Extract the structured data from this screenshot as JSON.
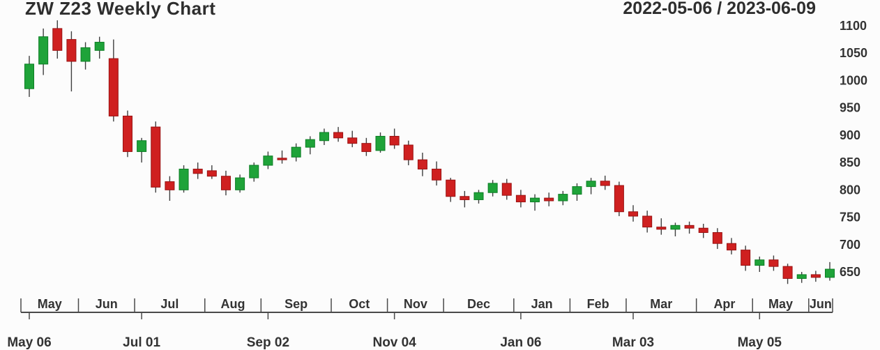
{
  "header": {
    "title": "ZW Z23 Weekly Chart",
    "date_range": "2022-05-06 / 2023-06-09"
  },
  "chart_data": {
    "type": "candlestick",
    "title": "ZW Z23 Weekly Chart",
    "period": "weekly",
    "date_range_label": "2022-05-06 / 2023-06-09",
    "y_axis": {
      "min": 650,
      "max": 1100,
      "ticks": [
        1100,
        1050,
        1000,
        950,
        900,
        850,
        800,
        750,
        700,
        650
      ]
    },
    "x_axis": {
      "month_labels": [
        "May",
        "Jun",
        "Jul",
        "Aug",
        "Sep",
        "Oct",
        "Nov",
        "Dec",
        "Jan",
        "Feb",
        "Mar",
        "Apr",
        "May",
        "Jun"
      ],
      "major_ticks": [
        {
          "label": "May 06",
          "date": "2022-05-06"
        },
        {
          "label": "Jul 01",
          "date": "2022-07-01"
        },
        {
          "label": "Sep 02",
          "date": "2022-09-02"
        },
        {
          "label": "Nov 04",
          "date": "2022-11-04"
        },
        {
          "label": "Jan 06",
          "date": "2023-01-06"
        },
        {
          "label": "Mar 03",
          "date": "2023-03-03"
        },
        {
          "label": "May 05",
          "date": "2023-05-05"
        }
      ]
    },
    "colors": {
      "up": "#1fa339",
      "up_border": "#0c7d24",
      "down": "#cf2020",
      "down_border": "#991212",
      "wick": "#3f3f3f",
      "axis": "#4a4a4a",
      "text": "#333333"
    },
    "series": {
      "dates": [
        "2022-05-06",
        "2022-05-13",
        "2022-05-20",
        "2022-05-27",
        "2022-06-03",
        "2022-06-10",
        "2022-06-17",
        "2022-06-24",
        "2022-07-01",
        "2022-07-08",
        "2022-07-15",
        "2022-07-22",
        "2022-07-29",
        "2022-08-05",
        "2022-08-12",
        "2022-08-19",
        "2022-08-26",
        "2022-09-02",
        "2022-09-09",
        "2022-09-16",
        "2022-09-23",
        "2022-09-30",
        "2022-10-07",
        "2022-10-14",
        "2022-10-21",
        "2022-10-28",
        "2022-11-04",
        "2022-11-11",
        "2022-11-18",
        "2022-11-25",
        "2022-12-02",
        "2022-12-09",
        "2022-12-16",
        "2022-12-23",
        "2022-12-30",
        "2023-01-06",
        "2023-01-13",
        "2023-01-20",
        "2023-01-27",
        "2023-02-03",
        "2023-02-10",
        "2023-02-17",
        "2023-02-24",
        "2023-03-03",
        "2023-03-10",
        "2023-03-17",
        "2023-03-24",
        "2023-03-31",
        "2023-04-07",
        "2023-04-14",
        "2023-04-21",
        "2023-04-28",
        "2023-05-05",
        "2023-05-12",
        "2023-05-19",
        "2023-05-26",
        "2023-06-02",
        "2023-06-09"
      ],
      "open": [
        985,
        1030,
        1095,
        1075,
        1035,
        1055,
        1040,
        935,
        870,
        915,
        815,
        800,
        838,
        835,
        825,
        800,
        822,
        845,
        858,
        860,
        878,
        890,
        905,
        895,
        885,
        872,
        898,
        882,
        855,
        838,
        818,
        788,
        782,
        795,
        812,
        790,
        778,
        785,
        780,
        792,
        806,
        816,
        808,
        760,
        752,
        732,
        728,
        735,
        730,
        722,
        702,
        690,
        662,
        672,
        660,
        638,
        645,
        640
      ],
      "high": [
        1045,
        1095,
        1110,
        1090,
        1070,
        1080,
        1075,
        945,
        895,
        925,
        825,
        845,
        850,
        845,
        835,
        828,
        850,
        870,
        872,
        885,
        898,
        912,
        915,
        908,
        895,
        905,
        912,
        890,
        868,
        852,
        822,
        798,
        800,
        818,
        820,
        800,
        792,
        795,
        798,
        812,
        822,
        826,
        815,
        772,
        762,
        748,
        740,
        742,
        738,
        730,
        712,
        698,
        678,
        680,
        665,
        650,
        652,
        668
      ],
      "low": [
        970,
        1010,
        1040,
        980,
        1020,
        1040,
        925,
        860,
        850,
        795,
        780,
        795,
        820,
        820,
        790,
        795,
        815,
        838,
        848,
        852,
        865,
        882,
        888,
        878,
        862,
        868,
        875,
        845,
        825,
        808,
        778,
        768,
        775,
        788,
        782,
        768,
        762,
        770,
        772,
        780,
        792,
        800,
        752,
        742,
        722,
        718,
        715,
        720,
        712,
        692,
        682,
        652,
        650,
        652,
        628,
        630,
        632,
        634
      ],
      "close": [
        1030,
        1080,
        1055,
        1035,
        1060,
        1070,
        935,
        870,
        890,
        805,
        800,
        838,
        830,
        825,
        800,
        822,
        845,
        862,
        855,
        878,
        892,
        905,
        895,
        885,
        870,
        898,
        882,
        855,
        838,
        818,
        788,
        782,
        795,
        812,
        790,
        778,
        785,
        780,
        792,
        806,
        816,
        808,
        760,
        752,
        732,
        728,
        735,
        730,
        722,
        702,
        690,
        662,
        672,
        660,
        638,
        645,
        640,
        655
      ]
    }
  }
}
